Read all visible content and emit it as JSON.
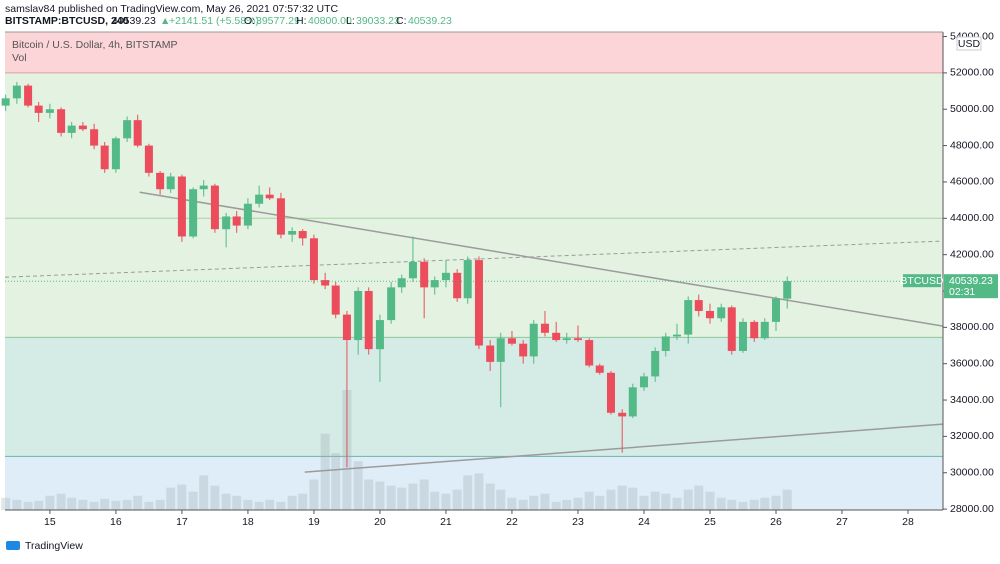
{
  "header": {
    "published": "samslav84 published on TradingView.com, May 26, 2021 07:57:32 UTC",
    "symbol": "BITSTAMP:BTCUSD, 240",
    "arrow": "▲",
    "change": "+2141.51 (+5.58%)",
    "o": "O:",
    "h": "H:",
    "high": "40800.00",
    "l": "L:",
    "c": "C:"
  },
  "footer": {
    "brand": "TradingView"
  },
  "chart_data": {
    "type": "candlestick",
    "title": "Bitcoin / U.S. Dollar, 4h, BITSTAMP",
    "volume_label": "Vol",
    "currency": "USD",
    "badge_symbol": "BTCUSD",
    "badge_timer": "02:31",
    "up_color": "#53b987",
    "down_color": "#eb4d5c",
    "volume_color": "rgba(150,165,165,0.28)",
    "x": [
      14.33,
      14.5,
      14.67,
      14.83,
      15,
      15.17,
      15.33,
      15.5,
      15.67,
      15.83,
      16,
      16.17,
      16.33,
      16.5,
      16.67,
      16.83,
      17,
      17.17,
      17.33,
      17.5,
      17.67,
      17.83,
      18,
      18.17,
      18.33,
      18.5,
      18.67,
      18.83,
      19,
      19.17,
      19.33,
      19.5,
      19.67,
      19.83,
      20,
      20.17,
      20.33,
      20.5,
      20.67,
      20.83,
      21,
      21.17,
      21.33,
      21.5,
      21.67,
      21.83,
      22,
      22.17,
      22.33,
      22.5,
      22.67,
      22.83,
      23,
      23.17,
      23.33,
      23.5,
      23.67,
      23.83,
      24,
      24.17,
      24.33,
      24.5,
      24.67,
      24.83,
      25,
      25.17,
      25.33,
      25.5,
      25.67,
      25.83,
      26,
      26.17
    ],
    "open": [
      50200,
      50600,
      51300,
      50200,
      49800,
      50000,
      48700,
      49100,
      48900,
      48000,
      46700,
      48400,
      49400,
      48000,
      46500,
      45600,
      46300,
      43000,
      45600,
      45800,
      43400,
      44100,
      43600,
      44800,
      45300,
      45100,
      43100,
      43300,
      42900,
      40600,
      40300,
      38700,
      37300,
      40000,
      36800,
      38400,
      40200,
      40700,
      41600,
      40200,
      40600,
      41000,
      39600,
      41700,
      37000,
      36100,
      37400,
      37100,
      36400,
      38200,
      37700,
      37300,
      37400,
      37300,
      35900,
      35500,
      33300,
      33100,
      34700,
      35300,
      36700,
      37500,
      37600,
      39500,
      38900,
      38500,
      39100,
      36700,
      38300,
      37400,
      38300,
      39577.29
    ],
    "high": [
      50800,
      51500,
      51400,
      50400,
      50300,
      50100,
      49300,
      49300,
      49200,
      48200,
      48500,
      49600,
      49700,
      48100,
      46600,
      46500,
      46400,
      45700,
      46100,
      45900,
      44300,
      44400,
      45100,
      45800,
      45700,
      45400,
      43500,
      43400,
      43100,
      41000,
      40500,
      38900,
      40200,
      40200,
      38700,
      40500,
      40900,
      43000,
      41800,
      40800,
      41700,
      41200,
      41900,
      41900,
      37300,
      37700,
      37800,
      37300,
      38400,
      38900,
      38300,
      37700,
      38100,
      37400,
      36000,
      35600,
      33500,
      34900,
      35500,
      36900,
      37700,
      38200,
      39700,
      39800,
      39300,
      39300,
      39200,
      38500,
      38400,
      38500,
      39700,
      40800
    ],
    "low": [
      49900,
      50300,
      50100,
      49300,
      49500,
      48500,
      48400,
      48800,
      47800,
      46500,
      46500,
      48200,
      47900,
      46300,
      45300,
      45400,
      42700,
      42900,
      45200,
      43200,
      42400,
      43200,
      43400,
      44600,
      45000,
      42900,
      42700,
      42500,
      40400,
      40100,
      38500,
      30300,
      36500,
      36500,
      35000,
      38200,
      39900,
      40500,
      38500,
      39800,
      40200,
      39400,
      39300,
      36800,
      35600,
      33600,
      37000,
      36000,
      36000,
      37500,
      37200,
      37100,
      37200,
      35800,
      35400,
      33200,
      31100,
      33000,
      34500,
      35000,
      36400,
      37300,
      37100,
      38600,
      38200,
      38300,
      36500,
      36600,
      37200,
      37300,
      37800,
      39033.23
    ],
    "close": [
      50600,
      51300,
      50200,
      49800,
      50000,
      48700,
      49100,
      48900,
      48000,
      46700,
      48400,
      49400,
      48000,
      46500,
      45600,
      46300,
      43000,
      45600,
      45800,
      43400,
      44100,
      43600,
      44800,
      45300,
      45100,
      43100,
      43300,
      42900,
      40600,
      40300,
      38700,
      37300,
      40000,
      36800,
      38400,
      40200,
      40700,
      41600,
      40200,
      40600,
      41000,
      39600,
      41700,
      37000,
      36100,
      37400,
      37100,
      36400,
      38200,
      37700,
      37300,
      37400,
      37300,
      35900,
      35500,
      33300,
      33100,
      34700,
      35300,
      36700,
      37500,
      37600,
      39500,
      38900,
      38500,
      39100,
      36700,
      38300,
      37400,
      38300,
      39577.29,
      40539.23
    ],
    "volume": [
      12,
      10,
      8,
      9,
      14,
      16,
      12,
      10,
      8,
      11,
      9,
      10,
      14,
      8,
      10,
      22,
      25,
      18,
      34,
      24,
      16,
      14,
      10,
      8,
      10,
      8,
      14,
      16,
      30,
      75,
      56,
      118,
      48,
      30,
      28,
      24,
      22,
      26,
      30,
      18,
      16,
      20,
      34,
      36,
      26,
      20,
      12,
      10,
      14,
      16,
      8,
      10,
      12,
      18,
      14,
      20,
      24,
      22,
      14,
      18,
      16,
      12,
      20,
      24,
      18,
      12,
      10,
      8,
      10,
      12,
      14,
      20
    ],
    "xlim": [
      14.32,
      28.53
    ],
    "xticks": [
      15,
      16,
      17,
      18,
      19,
      20,
      21,
      22,
      23,
      24,
      25,
      26,
      27,
      28
    ],
    "ylim": [
      27950,
      54250
    ],
    "yticks": [
      {
        "value": 28000,
        "label": "28000.00"
      },
      {
        "value": 30000,
        "label": "30000.00"
      },
      {
        "value": 32000,
        "label": "32000.00"
      },
      {
        "value": 34000,
        "label": "34000.00"
      },
      {
        "value": 36000,
        "label": "36000.00"
      },
      {
        "value": 38000,
        "label": "38000.00"
      },
      {
        "value": 40000,
        "label": "40000.00"
      },
      {
        "value": 42000,
        "label": "42000.00"
      },
      {
        "value": 44000,
        "label": "44000.00"
      },
      {
        "value": 46000,
        "label": "46000.00"
      },
      {
        "value": 48000,
        "label": "48000.00"
      },
      {
        "value": 50000,
        "label": "50000.00"
      },
      {
        "value": 52000,
        "label": "52000.00"
      },
      {
        "value": 54000,
        "label": "54000.00"
      }
    ],
    "zones": [
      {
        "from": 52000,
        "to": 54250,
        "color": "#fbd5d7"
      },
      {
        "from": 37450,
        "to": 52000,
        "color": "#e3f2e1"
      },
      {
        "from": 30900,
        "to": 37450,
        "color": "#d5ece6"
      },
      {
        "from": 27950,
        "to": 30900,
        "color": "#deedf8"
      }
    ],
    "levels": [
      {
        "value": 52000,
        "color": "#e0a0a4"
      },
      {
        "value": 44000,
        "color": "#a9d2a4"
      },
      {
        "value": 37450,
        "color": "#8fc59a"
      },
      {
        "value": 30900,
        "color": "#6fb3a8"
      }
    ],
    "trendlines": [
      {
        "x": [
          16.36,
          28.53
        ],
        "y": [
          45435,
          38065
        ],
        "color": "#9b9b9b",
        "dash": false
      },
      {
        "x": [
          18.86,
          28.53
        ],
        "y": [
          30035,
          32675
        ],
        "color": "#9b9b9b",
        "dash": false
      },
      {
        "x": [
          14.32,
          28.48
        ],
        "y": [
          40760,
          42740
        ],
        "color": "#9b9b9b",
        "dash": true
      }
    ]
  }
}
